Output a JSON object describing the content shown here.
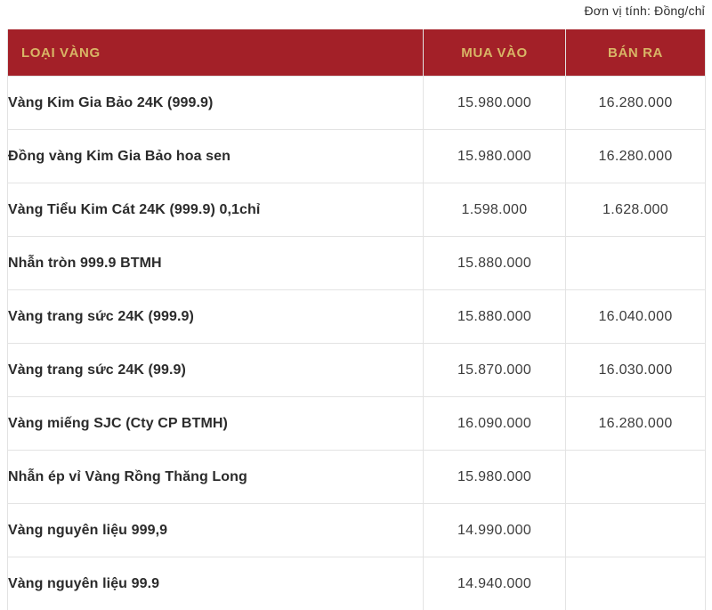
{
  "unit_note": "Đơn vị tính: Đồng/chỉ",
  "colors": {
    "header_bg": "#a32028",
    "header_text": "#d8b566",
    "border": "#e3e3e3",
    "body_text": "#2b2b2b",
    "number_text": "#3c3c3c"
  },
  "table": {
    "headers": [
      "LOẠI VÀNG",
      "MUA VÀO",
      "BÁN RA"
    ],
    "rows": [
      {
        "name": "Vàng Kim Gia Bảo 24K (999.9)",
        "buy": "15.980.000",
        "sell": "16.280.000"
      },
      {
        "name": "Đồng vàng Kim Gia Bảo hoa sen",
        "buy": "15.980.000",
        "sell": "16.280.000"
      },
      {
        "name": "Vàng Tiểu Kim Cát 24K (999.9) 0,1chỉ",
        "buy": "1.598.000",
        "sell": "1.628.000"
      },
      {
        "name": "Nhẫn tròn 999.9 BTMH",
        "buy": "15.880.000",
        "sell": ""
      },
      {
        "name": "Vàng trang sức 24K (999.9)",
        "buy": "15.880.000",
        "sell": "16.040.000"
      },
      {
        "name": "Vàng trang sức 24K (99.9)",
        "buy": "15.870.000",
        "sell": "16.030.000"
      },
      {
        "name": "Vàng miếng SJC (Cty CP BTMH)",
        "buy": "16.090.000",
        "sell": "16.280.000"
      },
      {
        "name": "Nhẫn ép vỉ Vàng Rồng Thăng Long",
        "buy": "15.980.000",
        "sell": ""
      },
      {
        "name": "Vàng nguyên liệu 999,9",
        "buy": "14.990.000",
        "sell": ""
      },
      {
        "name": "Vàng nguyên liệu 99.9",
        "buy": "14.940.000",
        "sell": ""
      }
    ]
  },
  "chart_data": {
    "type": "table",
    "unit": "Đồng/chỉ",
    "columns": [
      "LOẠI VÀNG",
      "MUA VÀO",
      "BÁN RA"
    ],
    "rows": [
      [
        "Vàng Kim Gia Bảo 24K (999.9)",
        "15.980.000",
        "16.280.000"
      ],
      [
        "Đồng vàng Kim Gia Bảo hoa sen",
        "15.980.000",
        "16.280.000"
      ],
      [
        "Vàng Tiểu Kim Cát 24K (999.9) 0,1chỉ",
        "1.598.000",
        "1.628.000"
      ],
      [
        "Nhẫn tròn 999.9 BTMH",
        "15.880.000",
        ""
      ],
      [
        "Vàng trang sức 24K (999.9)",
        "15.880.000",
        "16.040.000"
      ],
      [
        "Vàng trang sức 24K (99.9)",
        "15.870.000",
        "16.030.000"
      ],
      [
        "Vàng miếng SJC (Cty CP BTMH)",
        "16.090.000",
        "16.280.000"
      ],
      [
        "Nhẫn ép vỉ Vàng Rồng Thăng Long",
        "15.980.000",
        ""
      ],
      [
        "Vàng nguyên liệu 999,9",
        "14.990.000",
        ""
      ],
      [
        "Vàng nguyên liệu 99.9",
        "14.940.000",
        ""
      ]
    ]
  }
}
